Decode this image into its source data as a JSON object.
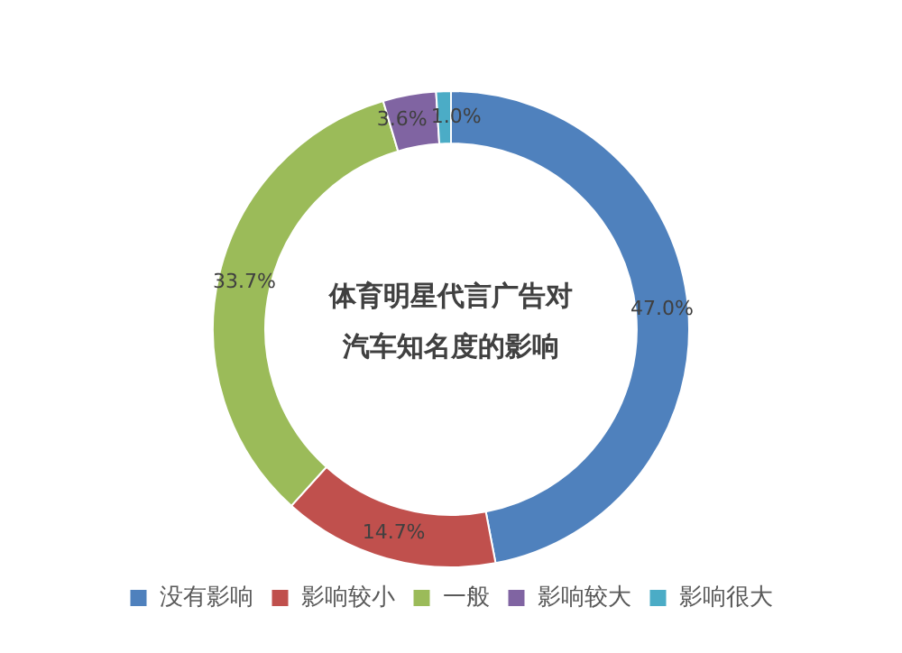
{
  "chart_data": {
    "type": "donut",
    "title": "体育明星代言广告对汽车知名度的影响",
    "categories": [
      "没有影响",
      "影响较小",
      "一般",
      "影响较大",
      "影响很大"
    ],
    "values": [
      47.0,
      14.7,
      33.7,
      3.6,
      1.0
    ],
    "value_labels": [
      "47.0%",
      "14.7%",
      "33.7%",
      "3.6%",
      "1.0%"
    ],
    "colors": [
      "#4f81bd",
      "#c0504d",
      "#9bbb59",
      "#8064a2",
      "#4bacc6"
    ],
    "legend": "bottom"
  }
}
